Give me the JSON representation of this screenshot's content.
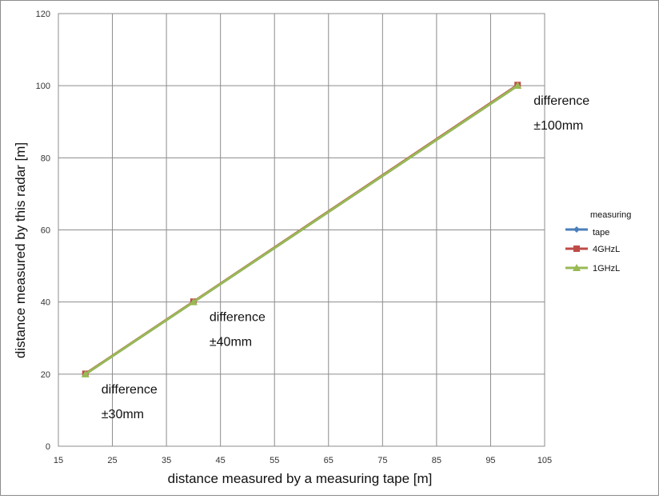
{
  "chart_data": {
    "type": "line",
    "xlabel": "distance measured by a measuring tape [m]",
    "ylabel": "distance measured by this radar [m]",
    "xlim": [
      15,
      105
    ],
    "ylim": [
      0,
      120
    ],
    "xticks": [
      15,
      25,
      35,
      45,
      55,
      65,
      75,
      85,
      95,
      105
    ],
    "yticks": [
      0,
      20,
      40,
      60,
      80,
      100,
      120
    ],
    "grid": true,
    "legend_position": "right",
    "series": [
      {
        "name": "measuring tape",
        "name_lines": [
          "measuring",
          "tape"
        ],
        "color": "#4a7ebb",
        "marker": "diamond",
        "x": [
          20,
          40,
          100
        ],
        "y": [
          20,
          40,
          100
        ]
      },
      {
        "name": "4GHzL",
        "name_lines": [
          "4GHzL"
        ],
        "color": "#be4b48",
        "marker": "square",
        "x": [
          20,
          40,
          100
        ],
        "y": [
          20.1,
          40.1,
          100.2
        ]
      },
      {
        "name": "1GHzL",
        "name_lines": [
          "1GHzL"
        ],
        "color": "#98b954",
        "marker": "triangle",
        "x": [
          20,
          40,
          100
        ],
        "y": [
          20,
          40,
          100
        ]
      }
    ],
    "annotations": [
      {
        "line1": "difference",
        "line2": "±30mm",
        "x": 20,
        "y": 20
      },
      {
        "line1": "difference",
        "line2": "±40mm",
        "x": 40,
        "y": 40
      },
      {
        "line1": "difference",
        "line2": "±100mm",
        "x": 100,
        "y": 100
      }
    ]
  }
}
